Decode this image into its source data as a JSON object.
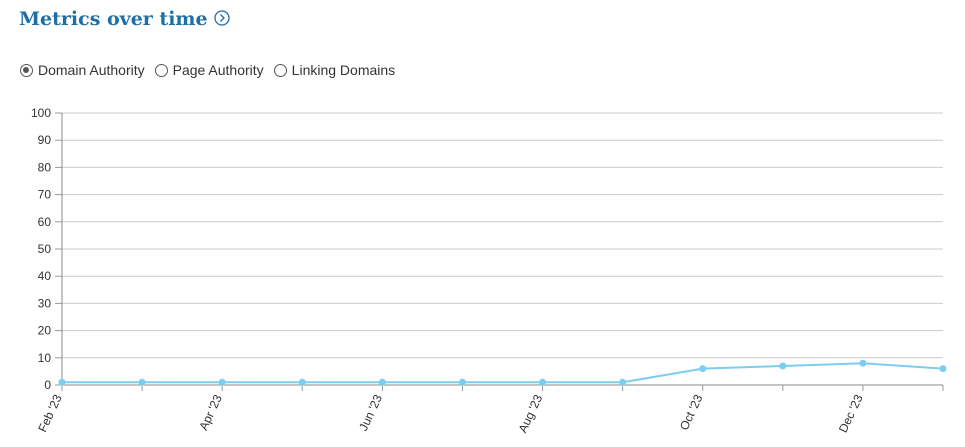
{
  "header": {
    "title": "Metrics over time"
  },
  "controls": {
    "options": [
      "Domain Authority",
      "Page Authority",
      "Linking Domains"
    ],
    "selected": 0
  },
  "chart_data": {
    "type": "line",
    "categories": [
      "Feb '23",
      null,
      "Apr '23",
      null,
      "Jun '23",
      null,
      "Aug '23",
      null,
      "Oct '23",
      null,
      "Dec '23",
      null
    ],
    "values": [
      1,
      1,
      1,
      1,
      1,
      1,
      1,
      1,
      6,
      7,
      8,
      6
    ],
    "color": "#7ccdef",
    "ylim": [
      0,
      100
    ],
    "yticks": [
      0,
      10,
      20,
      30,
      40,
      50,
      60,
      70,
      80,
      90,
      100
    ],
    "grid": true
  }
}
